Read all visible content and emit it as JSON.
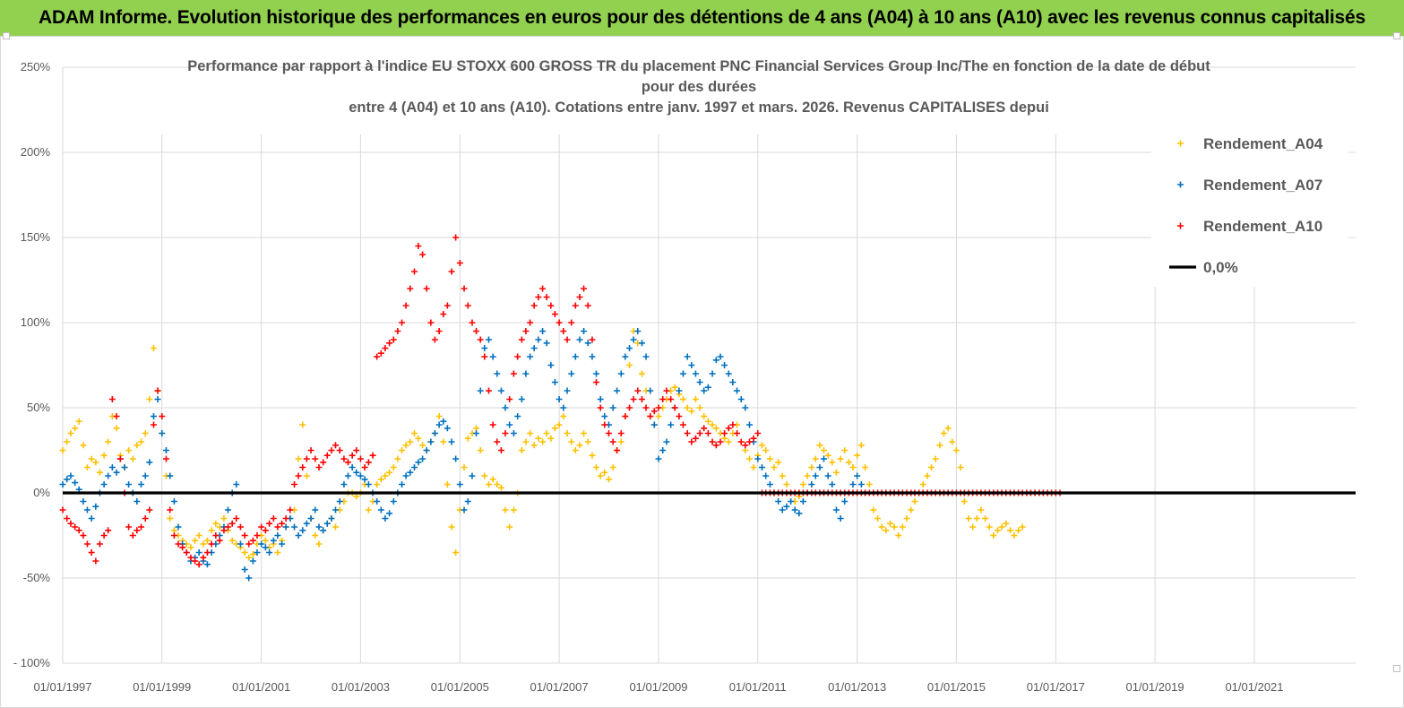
{
  "header": {
    "title": "ADAM Informe. Evolution historique des performances en euros pour des détentions de 4 ans (A04) à 10 ans (A10) avec les revenus connus capitalisés"
  },
  "colors": {
    "header_bg": "#92D050",
    "A04": "#FFC000",
    "A07": "#0070C0",
    "A10": "#FF0000",
    "zero": "#000000"
  },
  "chart_data": {
    "type": "scatter",
    "title_lines": [
      "Performance par rapport à l'indice EU STOXX 600 GROSS TR  du placement PNC Financial Services  Group Inc/The en fonction de la date de début",
      "pour des durées",
      "entre 4 (A04) et 10 ans (A10). Cotations entre janv. 1997 et mars. 2026. Revenus CAPITALISES depui"
    ],
    "x_tick_labels": [
      "01/01/1997",
      "01/01/1999",
      "01/01/2001",
      "01/01/2003",
      "01/01/2005",
      "01/01/2007",
      "01/01/2009",
      "01/01/2011",
      "01/01/2013",
      "01/01/2015",
      "01/01/2017",
      "01/01/2019",
      "01/01/2021"
    ],
    "y_tick_labels": [
      "250%",
      "200%",
      "150%",
      "100%",
      "50%",
      "0%",
      "-50%",
      "- 100%"
    ],
    "xlim": [
      "1997-01-01",
      "2023-03-01"
    ],
    "ylim": [
      -100,
      250
    ],
    "grid": true,
    "legend_position": "right",
    "legend": [
      "Rendement_A04",
      "Rendement_A07",
      "Rendement_A10",
      "0,0%"
    ],
    "series": [
      {
        "name": "Rendement_A04",
        "marker": "+",
        "x_start": "1997-01-01",
        "x_step_months": 1,
        "y": [
          25,
          30,
          35,
          38,
          42,
          28,
          15,
          20,
          18,
          12,
          22,
          30,
          45,
          38,
          22,
          15,
          25,
          20,
          28,
          30,
          35,
          55,
          85,
          60,
          35,
          10,
          -15,
          -22,
          -25,
          -28,
          -30,
          -32,
          -28,
          -25,
          -30,
          -28,
          -22,
          -18,
          -20,
          -15,
          -22,
          -28,
          -30,
          -32,
          -35,
          -38,
          -36,
          -30,
          -25,
          -28,
          -32,
          -30,
          -35,
          -28,
          -20,
          -15,
          -10,
          20,
          40,
          10,
          -15,
          -25,
          -30,
          -22,
          -18,
          -15,
          -20,
          -10,
          -5,
          0,
          0,
          -2,
          0,
          5,
          -10,
          -5,
          5,
          8,
          10,
          12,
          15,
          20,
          25,
          28,
          30,
          35,
          32,
          28,
          25,
          30,
          35,
          45,
          30,
          5,
          -20,
          -35,
          -10,
          15,
          32,
          35,
          38,
          25,
          10,
          5,
          8,
          5,
          3,
          -10,
          -20,
          -10,
          0,
          25,
          30,
          35,
          28,
          32,
          30,
          35,
          32,
          38,
          40,
          45,
          35,
          30,
          25,
          28,
          35,
          30,
          22,
          15,
          10,
          12,
          8,
          15,
          25,
          30,
          45,
          75,
          95,
          88,
          70,
          60,
          45,
          40,
          45,
          50,
          55,
          60,
          62,
          58,
          55,
          50,
          48,
          55,
          50,
          45,
          42,
          40,
          38,
          35,
          32,
          30,
          35,
          40,
          30,
          25,
          20,
          15,
          22,
          28,
          25,
          20,
          15,
          18,
          10,
          5,
          0,
          -5,
          -2,
          5,
          10,
          15,
          20,
          28,
          25,
          22,
          18,
          12,
          20,
          25,
          18,
          15,
          22,
          28,
          15,
          5,
          -10,
          -15,
          -20,
          -22,
          -18,
          -20,
          -25,
          -20,
          -15,
          -10,
          -5,
          0,
          5,
          10,
          15,
          20,
          28,
          35,
          38,
          30,
          25,
          15,
          -5,
          -15,
          -20,
          -15,
          -10,
          -15,
          -20,
          -25,
          -22,
          -20,
          -18,
          -22,
          -25,
          -22,
          -20
        ]
      },
      {
        "name": "Rendement_A07",
        "marker": "+",
        "x_start": "1997-01-01",
        "x_step_months": 1,
        "y": [
          5,
          8,
          10,
          6,
          2,
          -5,
          -10,
          -15,
          -8,
          0,
          5,
          10,
          15,
          12,
          20,
          15,
          5,
          0,
          -5,
          5,
          10,
          18,
          45,
          55,
          35,
          25,
          10,
          -5,
          -20,
          -30,
          -35,
          -40,
          -38,
          -35,
          -40,
          -42,
          -35,
          -30,
          -25,
          -20,
          -10,
          0,
          5,
          -30,
          -45,
          -50,
          -40,
          -35,
          -30,
          -32,
          -35,
          -28,
          -25,
          -30,
          -20,
          -15,
          -20,
          -25,
          -22,
          -18,
          -15,
          -10,
          -20,
          -22,
          -18,
          -15,
          -10,
          -5,
          5,
          10,
          15,
          12,
          10,
          8,
          5,
          0,
          -5,
          -10,
          -15,
          -12,
          -5,
          0,
          5,
          10,
          12,
          15,
          18,
          20,
          25,
          30,
          35,
          40,
          42,
          38,
          30,
          20,
          5,
          -10,
          -5,
          10,
          35,
          60,
          85,
          90,
          80,
          70,
          60,
          50,
          40,
          35,
          45,
          55,
          70,
          80,
          85,
          90,
          95,
          88,
          75,
          65,
          55,
          50,
          60,
          70,
          80,
          90,
          95,
          88,
          80,
          70,
          55,
          45,
          40,
          50,
          60,
          70,
          80,
          85,
          90,
          95,
          88,
          80,
          60,
          40,
          20,
          25,
          30,
          40,
          50,
          60,
          70,
          80,
          75,
          70,
          65,
          60,
          62,
          70,
          78,
          80,
          75,
          70,
          65,
          60,
          55,
          50,
          40,
          30,
          20,
          15,
          10,
          5,
          0,
          -5,
          -10,
          -8,
          -5,
          -10,
          -12,
          -5,
          0,
          5,
          10,
          15,
          20,
          10,
          5,
          -10,
          -15,
          -5,
          0,
          5,
          10,
          5,
          0
        ]
      },
      {
        "name": "Rendement_A10",
        "marker": "+",
        "x_start": "1997-01-01",
        "x_step_months": 1,
        "y": [
          -10,
          -15,
          -18,
          -20,
          -22,
          -25,
          -30,
          -35,
          -40,
          -30,
          -25,
          -22,
          55,
          45,
          20,
          0,
          -20,
          -25,
          -22,
          -20,
          -15,
          -10,
          40,
          60,
          45,
          20,
          -10,
          -25,
          -30,
          -32,
          -35,
          -38,
          -40,
          -42,
          -38,
          -35,
          -30,
          -25,
          -28,
          -22,
          -20,
          -18,
          -15,
          -20,
          -25,
          -30,
          -28,
          -25,
          -20,
          -22,
          -18,
          -15,
          -20,
          -18,
          -15,
          -10,
          5,
          10,
          15,
          20,
          25,
          20,
          15,
          18,
          22,
          25,
          28,
          25,
          20,
          18,
          22,
          25,
          20,
          15,
          18,
          22,
          80,
          82,
          85,
          88,
          90,
          95,
          100,
          110,
          120,
          130,
          145,
          140,
          120,
          100,
          90,
          95,
          105,
          110,
          130,
          150,
          135,
          120,
          110,
          100,
          95,
          90,
          80,
          60,
          40,
          30,
          25,
          35,
          55,
          70,
          80,
          90,
          95,
          100,
          110,
          115,
          120,
          115,
          110,
          105,
          100,
          95,
          90,
          100,
          110,
          115,
          120,
          110,
          90,
          65,
          50,
          40,
          35,
          30,
          25,
          35,
          45,
          50,
          55,
          60,
          55,
          50,
          45,
          48,
          50,
          55,
          60,
          55,
          50,
          45,
          40,
          35,
          30,
          32,
          35,
          38,
          35,
          30,
          28,
          30,
          35,
          38,
          40,
          35,
          30,
          28,
          30,
          32,
          35,
          0,
          0,
          0,
          0,
          0,
          0,
          0,
          0,
          0,
          0,
          0,
          0,
          0,
          0,
          0,
          0,
          0,
          0,
          0,
          0,
          0,
          0,
          0,
          0,
          0,
          0,
          0,
          0,
          0,
          0,
          0,
          0,
          0,
          0,
          0,
          0,
          0,
          0,
          0,
          0,
          0,
          0,
          0,
          0,
          0,
          0,
          0,
          0,
          0,
          0,
          0,
          0,
          0,
          0,
          0,
          0,
          0,
          0,
          0,
          0,
          0,
          0,
          0,
          0,
          0,
          0,
          0,
          0,
          0,
          0,
          0,
          0,
          0
        ]
      },
      {
        "name": "0,0%",
        "type": "line",
        "y": 0
      }
    ]
  }
}
